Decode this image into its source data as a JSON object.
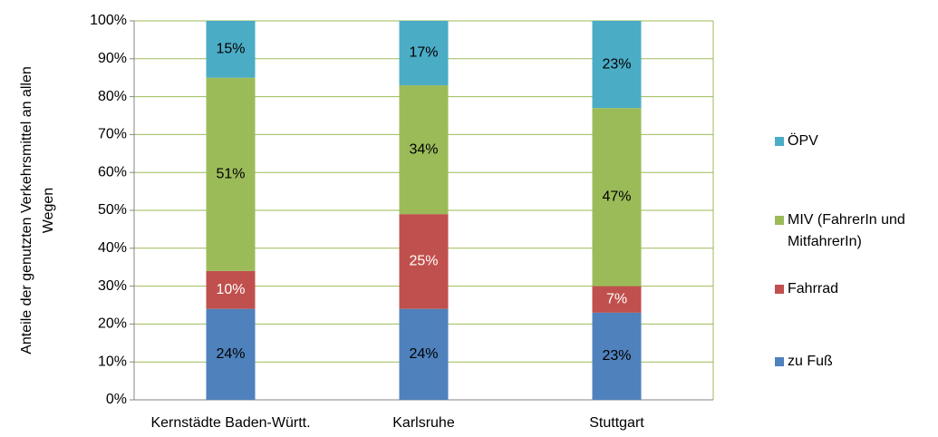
{
  "chart_data": {
    "type": "stacked_bar",
    "ylabel": "Anteile der genutzten Verkehrsmittel an allen Wegen",
    "categories": [
      "Kernstädte Baden-Württ.",
      "Karlsruhe",
      "Stuttgart"
    ],
    "series": [
      {
        "name": "zu Fuß",
        "color": "#4f81bd",
        "label_color": "#000000",
        "values": [
          24,
          24,
          23
        ],
        "value_labels": [
          "24%",
          "24%",
          "23%"
        ]
      },
      {
        "name": "Fahrrad",
        "color": "#c0504d",
        "label_color": "#ffffff",
        "values": [
          10,
          25,
          7
        ],
        "value_labels": [
          "10%",
          "25%",
          "7%"
        ]
      },
      {
        "name": "MIV (FahrerIn und MitfahrerIn)",
        "color": "#9bbb59",
        "label_color": "#000000",
        "values": [
          51,
          34,
          47
        ],
        "value_labels": [
          "51%",
          "34%",
          "47%"
        ]
      },
      {
        "name": "ÖPV",
        "color": "#4bacc6",
        "label_color": "#000000",
        "values": [
          15,
          17,
          23
        ],
        "value_labels": [
          "15%",
          "17%",
          "23%"
        ]
      }
    ],
    "ylim": [
      0,
      100
    ],
    "yticks": [
      {
        "value": 0,
        "label": "0%"
      },
      {
        "value": 10,
        "label": "10%"
      },
      {
        "value": 20,
        "label": "20%"
      },
      {
        "value": 30,
        "label": "30%"
      },
      {
        "value": 40,
        "label": "40%"
      },
      {
        "value": 50,
        "label": "50%"
      },
      {
        "value": 60,
        "label": "60%"
      },
      {
        "value": 70,
        "label": "70%"
      },
      {
        "value": 80,
        "label": "80%"
      },
      {
        "value": 90,
        "label": "90%"
      },
      {
        "value": 100,
        "label": "100%"
      }
    ],
    "grid": true,
    "grid_color": "#9bbb59",
    "legend": "right"
  }
}
